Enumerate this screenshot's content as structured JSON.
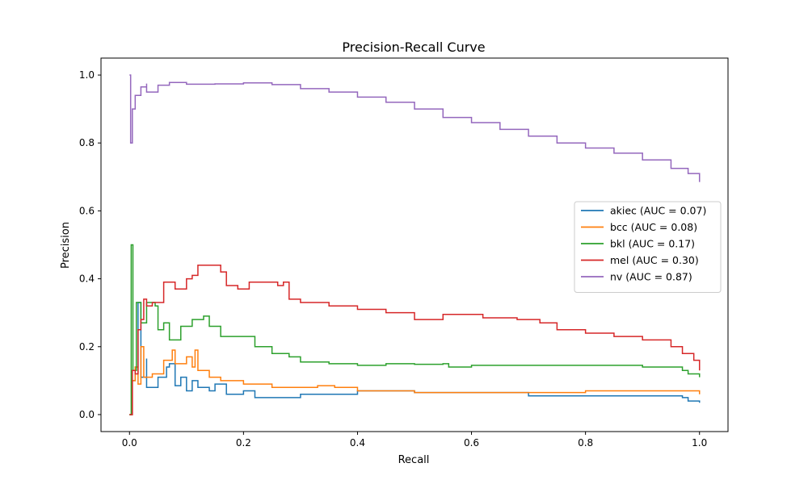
{
  "chart_data": {
    "type": "line",
    "title": "Precision-Recall Curve",
    "xlabel": "Recall",
    "ylabel": "Precision",
    "xlim": [
      -0.05,
      1.05
    ],
    "ylim": [
      -0.05,
      1.05
    ],
    "x_ticks": [
      0.0,
      0.2,
      0.4,
      0.6,
      0.8,
      1.0
    ],
    "y_ticks": [
      0.0,
      0.2,
      0.4,
      0.6,
      0.8,
      1.0
    ],
    "x_tick_labels": [
      "0.0",
      "0.2",
      "0.4",
      "0.6",
      "0.8",
      "1.0"
    ],
    "y_tick_labels": [
      "0.0",
      "0.2",
      "0.4",
      "0.6",
      "0.8",
      "1.0"
    ],
    "grid": false,
    "legend_position": "center-right",
    "series": [
      {
        "name": "akiec (AUC = 0.07)",
        "color": "#1f77b4",
        "points": [
          [
            0.0,
            0.0
          ],
          [
            0.005,
            0.1
          ],
          [
            0.01,
            0.14
          ],
          [
            0.015,
            0.33
          ],
          [
            0.02,
            0.11
          ],
          [
            0.03,
            0.165
          ],
          [
            0.03,
            0.08
          ],
          [
            0.05,
            0.11
          ],
          [
            0.065,
            0.14
          ],
          [
            0.07,
            0.15
          ],
          [
            0.08,
            0.085
          ],
          [
            0.09,
            0.11
          ],
          [
            0.1,
            0.07
          ],
          [
            0.11,
            0.1
          ],
          [
            0.12,
            0.08
          ],
          [
            0.14,
            0.07
          ],
          [
            0.15,
            0.09
          ],
          [
            0.17,
            0.06
          ],
          [
            0.2,
            0.07
          ],
          [
            0.22,
            0.05
          ],
          [
            0.3,
            0.06
          ],
          [
            0.4,
            0.07
          ],
          [
            0.45,
            0.07
          ],
          [
            0.5,
            0.065
          ],
          [
            0.6,
            0.065
          ],
          [
            0.7,
            0.055
          ],
          [
            0.8,
            0.055
          ],
          [
            0.9,
            0.055
          ],
          [
            0.97,
            0.05
          ],
          [
            0.98,
            0.04
          ],
          [
            1.0,
            0.035
          ]
        ]
      },
      {
        "name": "bcc (AUC = 0.08)",
        "color": "#ff7f0e",
        "points": [
          [
            0.0,
            0.0
          ],
          [
            0.005,
            0.1
          ],
          [
            0.01,
            0.14
          ],
          [
            0.015,
            0.09
          ],
          [
            0.02,
            0.2
          ],
          [
            0.025,
            0.11
          ],
          [
            0.04,
            0.12
          ],
          [
            0.06,
            0.16
          ],
          [
            0.075,
            0.19
          ],
          [
            0.08,
            0.15
          ],
          [
            0.1,
            0.17
          ],
          [
            0.11,
            0.14
          ],
          [
            0.115,
            0.19
          ],
          [
            0.12,
            0.13
          ],
          [
            0.14,
            0.11
          ],
          [
            0.16,
            0.1
          ],
          [
            0.2,
            0.09
          ],
          [
            0.25,
            0.08
          ],
          [
            0.3,
            0.08
          ],
          [
            0.33,
            0.085
          ],
          [
            0.36,
            0.08
          ],
          [
            0.4,
            0.07
          ],
          [
            0.5,
            0.065
          ],
          [
            0.6,
            0.065
          ],
          [
            0.7,
            0.065
          ],
          [
            0.8,
            0.07
          ],
          [
            0.9,
            0.07
          ],
          [
            0.97,
            0.07
          ],
          [
            1.0,
            0.06
          ]
        ]
      },
      {
        "name": "bkl (AUC = 0.17)",
        "color": "#2ca02c",
        "points": [
          [
            0.0,
            0.0
          ],
          [
            0.003,
            0.5
          ],
          [
            0.006,
            0.13
          ],
          [
            0.012,
            0.33
          ],
          [
            0.02,
            0.27
          ],
          [
            0.03,
            0.33
          ],
          [
            0.045,
            0.32
          ],
          [
            0.05,
            0.25
          ],
          [
            0.06,
            0.27
          ],
          [
            0.07,
            0.22
          ],
          [
            0.09,
            0.26
          ],
          [
            0.11,
            0.28
          ],
          [
            0.13,
            0.29
          ],
          [
            0.14,
            0.26
          ],
          [
            0.16,
            0.23
          ],
          [
            0.2,
            0.23
          ],
          [
            0.22,
            0.2
          ],
          [
            0.25,
            0.18
          ],
          [
            0.28,
            0.17
          ],
          [
            0.3,
            0.155
          ],
          [
            0.35,
            0.15
          ],
          [
            0.4,
            0.145
          ],
          [
            0.45,
            0.15
          ],
          [
            0.5,
            0.148
          ],
          [
            0.55,
            0.15
          ],
          [
            0.56,
            0.14
          ],
          [
            0.6,
            0.145
          ],
          [
            0.7,
            0.145
          ],
          [
            0.8,
            0.145
          ],
          [
            0.9,
            0.14
          ],
          [
            0.97,
            0.13
          ],
          [
            0.98,
            0.12
          ],
          [
            1.0,
            0.11
          ]
        ]
      },
      {
        "name": "mel (AUC = 0.30)",
        "color": "#d62728",
        "points": [
          [
            0.0,
            0.0
          ],
          [
            0.005,
            0.13
          ],
          [
            0.01,
            0.12
          ],
          [
            0.015,
            0.25
          ],
          [
            0.02,
            0.28
          ],
          [
            0.025,
            0.34
          ],
          [
            0.03,
            0.32
          ],
          [
            0.04,
            0.33
          ],
          [
            0.06,
            0.39
          ],
          [
            0.08,
            0.37
          ],
          [
            0.1,
            0.4
          ],
          [
            0.11,
            0.41
          ],
          [
            0.12,
            0.44
          ],
          [
            0.14,
            0.44
          ],
          [
            0.16,
            0.42
          ],
          [
            0.17,
            0.38
          ],
          [
            0.19,
            0.37
          ],
          [
            0.21,
            0.39
          ],
          [
            0.24,
            0.39
          ],
          [
            0.26,
            0.38
          ],
          [
            0.27,
            0.39
          ],
          [
            0.28,
            0.34
          ],
          [
            0.3,
            0.33
          ],
          [
            0.33,
            0.33
          ],
          [
            0.35,
            0.32
          ],
          [
            0.4,
            0.31
          ],
          [
            0.45,
            0.3
          ],
          [
            0.5,
            0.28
          ],
          [
            0.55,
            0.295
          ],
          [
            0.6,
            0.295
          ],
          [
            0.62,
            0.285
          ],
          [
            0.68,
            0.28
          ],
          [
            0.72,
            0.27
          ],
          [
            0.75,
            0.25
          ],
          [
            0.8,
            0.24
          ],
          [
            0.85,
            0.23
          ],
          [
            0.9,
            0.22
          ],
          [
            0.95,
            0.2
          ],
          [
            0.97,
            0.18
          ],
          [
            0.99,
            0.16
          ],
          [
            1.0,
            0.13
          ]
        ]
      },
      {
        "name": "nv (AUC = 0.87)",
        "color": "#9467bd",
        "points": [
          [
            0.0,
            1.0
          ],
          [
            0.002,
            0.8
          ],
          [
            0.005,
            0.9
          ],
          [
            0.01,
            0.94
          ],
          [
            0.02,
            0.965
          ],
          [
            0.03,
            0.975
          ],
          [
            0.03,
            0.95
          ],
          [
            0.05,
            0.97
          ],
          [
            0.07,
            0.978
          ],
          [
            0.1,
            0.973
          ],
          [
            0.15,
            0.974
          ],
          [
            0.2,
            0.977
          ],
          [
            0.25,
            0.972
          ],
          [
            0.3,
            0.96
          ],
          [
            0.35,
            0.95
          ],
          [
            0.4,
            0.935
          ],
          [
            0.45,
            0.92
          ],
          [
            0.5,
            0.9
          ],
          [
            0.55,
            0.875
          ],
          [
            0.6,
            0.86
          ],
          [
            0.65,
            0.84
          ],
          [
            0.7,
            0.82
          ],
          [
            0.75,
            0.8
          ],
          [
            0.8,
            0.785
          ],
          [
            0.85,
            0.77
          ],
          [
            0.9,
            0.75
          ],
          [
            0.95,
            0.725
          ],
          [
            0.98,
            0.71
          ],
          [
            1.0,
            0.685
          ]
        ]
      }
    ]
  }
}
